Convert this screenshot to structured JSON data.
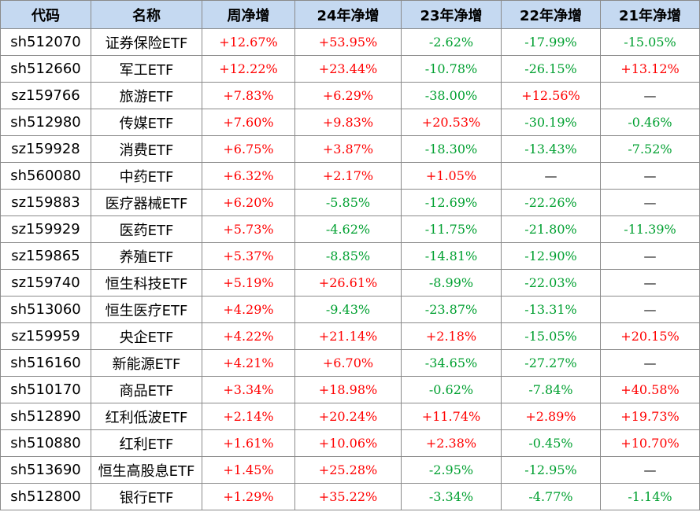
{
  "colors": {
    "header_bg": "#c5d9f1",
    "positive": "#ff0000",
    "negative": "#00a030",
    "border": "#8a8a8a"
  },
  "headers": [
    "代码",
    "名称",
    "周净增",
    "24年净增",
    "23年净增",
    "22年净增",
    "21年净增"
  ],
  "rows": [
    [
      "sh512070",
      "证券保险ETF",
      "+12.67%",
      "+53.95%",
      "-2.62%",
      "-17.99%",
      "-15.05%"
    ],
    [
      "sh512660",
      "军工ETF",
      "+12.22%",
      "+23.44%",
      "-10.78%",
      "-26.15%",
      "+13.12%"
    ],
    [
      "sz159766",
      "旅游ETF",
      "+7.83%",
      "+6.29%",
      "-38.00%",
      "+12.56%",
      "—"
    ],
    [
      "sh512980",
      "传媒ETF",
      "+7.60%",
      "+9.83%",
      "+20.53%",
      "-30.19%",
      "-0.46%"
    ],
    [
      "sz159928",
      "消费ETF",
      "+6.75%",
      "+3.87%",
      "-18.30%",
      "-13.43%",
      "-7.52%"
    ],
    [
      "sh560080",
      "中药ETF",
      "+6.32%",
      "+2.17%",
      "+1.05%",
      "—",
      "—"
    ],
    [
      "sz159883",
      "医疗器械ETF",
      "+6.20%",
      "-5.85%",
      "-12.69%",
      "-22.26%",
      "—"
    ],
    [
      "sz159929",
      "医药ETF",
      "+5.73%",
      "-4.62%",
      "-11.75%",
      "-21.80%",
      "-11.39%"
    ],
    [
      "sz159865",
      "养殖ETF",
      "+5.37%",
      "-8.85%",
      "-14.81%",
      "-12.90%",
      "—"
    ],
    [
      "sz159740",
      "恒生科技ETF",
      "+5.19%",
      "+26.61%",
      "-8.99%",
      "-22.03%",
      "—"
    ],
    [
      "sh513060",
      "恒生医疗ETF",
      "+4.29%",
      "-9.43%",
      "-23.87%",
      "-13.31%",
      "—"
    ],
    [
      "sz159959",
      "央企ETF",
      "+4.22%",
      "+21.14%",
      "+2.18%",
      "-15.05%",
      "+20.15%"
    ],
    [
      "sh516160",
      "新能源ETF",
      "+4.21%",
      "+6.70%",
      "-34.65%",
      "-27.27%",
      "—"
    ],
    [
      "sh510170",
      "商品ETF",
      "+3.34%",
      "+18.98%",
      "-0.62%",
      "-7.84%",
      "+40.58%"
    ],
    [
      "sh512890",
      "红利低波ETF",
      "+2.14%",
      "+20.24%",
      "+11.74%",
      "+2.89%",
      "+19.73%"
    ],
    [
      "sh510880",
      "红利ETF",
      "+1.61%",
      "+10.06%",
      "+2.38%",
      "-0.45%",
      "+10.70%"
    ],
    [
      "sh513690",
      "恒生高股息ETF",
      "+1.45%",
      "+25.28%",
      "-2.95%",
      "-12.95%",
      "—"
    ],
    [
      "sh512800",
      "银行ETF",
      "+1.29%",
      "+35.22%",
      "-3.34%",
      "-4.77%",
      "-1.14%"
    ]
  ]
}
